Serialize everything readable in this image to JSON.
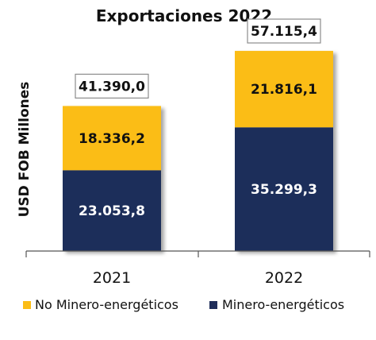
{
  "chart_data": {
    "type": "bar",
    "stacked": true,
    "title": "Exportaciones 2022",
    "ylabel": "USD FOB Millones",
    "xlabel": "",
    "categories": [
      "2021",
      "2022"
    ],
    "series": [
      {
        "name": "Minero-energéticos",
        "values": [
          23053.8,
          35299.3
        ],
        "labels": [
          "23.053,8",
          "35.299,3"
        ],
        "color": "#1f2d5a",
        "text_color": "#ffffff"
      },
      {
        "name": "No Minero-energéticos",
        "values": [
          18336.2,
          21816.1
        ],
        "labels": [
          "18.336,2",
          "21.816,1"
        ],
        "color": "#fbbd16",
        "text_color": "#111111"
      }
    ],
    "totals": [
      41390.0,
      57115.4
    ],
    "total_labels": [
      "41.390,0",
      "57.115,4"
    ],
    "ylim": [
      0,
      60000
    ],
    "grid": false,
    "legend": {
      "position": "bottom",
      "order": [
        "No Minero-energéticos",
        "Minero-energéticos"
      ]
    }
  }
}
